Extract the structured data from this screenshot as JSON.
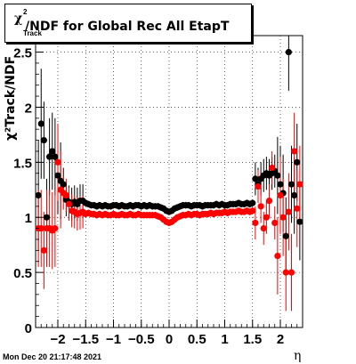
{
  "title": {
    "main": "/NDF for Global Rec All EtapT",
    "chi": "χ",
    "sup": "2",
    "sub": "Track"
  },
  "ylabel": "χ²Track/NDF",
  "xlabel": "η",
  "datestamp": "Mon Dec 20 21:17:48 2021",
  "chart_data": {
    "type": "scatter",
    "title": "χ²Track/NDF for Global Rec All EtapT",
    "xlabel": "η",
    "ylabel": "χ²Track/NDF",
    "xlim": [
      -2.4,
      2.4
    ],
    "ylim": [
      0,
      2.65
    ],
    "xticks": [
      "-2",
      "-1.5",
      "-1",
      "-0.5",
      "0",
      "0.5",
      "1",
      "1.5",
      "2"
    ],
    "yticks": [
      "0",
      "0.5",
      "1",
      "1.5",
      "2",
      "2.5"
    ],
    "grid": true,
    "series": [
      {
        "color": "#000000",
        "points": [
          [
            -2.35,
            1.2
          ],
          [
            -2.3,
            1.85
          ],
          [
            -2.25,
            1.7
          ],
          [
            -2.2,
            1.0
          ],
          [
            -2.15,
            1.55
          ],
          [
            -2.1,
            1.6
          ],
          [
            -2.05,
            1.55
          ],
          [
            -2.0,
            1.38
          ],
          [
            -1.95,
            1.33
          ],
          [
            -1.9,
            1.3
          ],
          [
            -1.85,
            1.16
          ],
          [
            -1.8,
            1.14
          ],
          [
            -1.75,
            1.12
          ],
          [
            -1.7,
            1.14
          ],
          [
            -1.65,
            1.12
          ],
          [
            -1.6,
            1.15
          ],
          [
            -1.55,
            1.15
          ],
          [
            -1.5,
            1.13
          ],
          [
            -1.45,
            1.12
          ],
          [
            -1.4,
            1.11
          ],
          [
            -1.35,
            1.11
          ],
          [
            -1.3,
            1.1
          ],
          [
            -1.25,
            1.11
          ],
          [
            -1.2,
            1.1
          ],
          [
            -1.15,
            1.11
          ],
          [
            -1.1,
            1.1
          ],
          [
            -1.05,
            1.1
          ],
          [
            -1.0,
            1.11
          ],
          [
            -0.95,
            1.11
          ],
          [
            -0.9,
            1.1
          ],
          [
            -0.85,
            1.11
          ],
          [
            -0.8,
            1.1
          ],
          [
            -0.75,
            1.1
          ],
          [
            -0.7,
            1.11
          ],
          [
            -0.65,
            1.1
          ],
          [
            -0.6,
            1.11
          ],
          [
            -0.55,
            1.11
          ],
          [
            -0.5,
            1.1
          ],
          [
            -0.45,
            1.11
          ],
          [
            -0.4,
            1.1
          ],
          [
            -0.35,
            1.11
          ],
          [
            -0.3,
            1.1
          ],
          [
            -0.25,
            1.1
          ],
          [
            -0.2,
            1.1
          ],
          [
            -0.15,
            1.09
          ],
          [
            -0.1,
            1.08
          ],
          [
            -0.05,
            1.06
          ],
          [
            0.0,
            1.05
          ],
          [
            0.05,
            1.06
          ],
          [
            0.1,
            1.08
          ],
          [
            0.15,
            1.09
          ],
          [
            0.2,
            1.1
          ],
          [
            0.25,
            1.11
          ],
          [
            0.3,
            1.11
          ],
          [
            0.35,
            1.11
          ],
          [
            0.4,
            1.1
          ],
          [
            0.45,
            1.11
          ],
          [
            0.5,
            1.11
          ],
          [
            0.55,
            1.11
          ],
          [
            0.6,
            1.1
          ],
          [
            0.65,
            1.11
          ],
          [
            0.7,
            1.11
          ],
          [
            0.75,
            1.11
          ],
          [
            0.8,
            1.11
          ],
          [
            0.85,
            1.12
          ],
          [
            0.9,
            1.11
          ],
          [
            0.95,
            1.12
          ],
          [
            1.0,
            1.11
          ],
          [
            1.05,
            1.11
          ],
          [
            1.1,
            1.12
          ],
          [
            1.15,
            1.12
          ],
          [
            1.2,
            1.12
          ],
          [
            1.25,
            1.13
          ],
          [
            1.3,
            1.12
          ],
          [
            1.35,
            1.12
          ],
          [
            1.4,
            1.13
          ],
          [
            1.45,
            1.12
          ],
          [
            1.5,
            1.13
          ],
          [
            1.55,
            1.35
          ],
          [
            1.6,
            1.3
          ],
          [
            1.65,
            1.35
          ],
          [
            1.7,
            1.38
          ],
          [
            1.75,
            1.4
          ],
          [
            1.8,
            1.38
          ],
          [
            1.85,
            1.4
          ],
          [
            1.9,
            1.42
          ],
          [
            1.95,
            1.38
          ],
          [
            2.0,
            1.3
          ],
          [
            2.05,
            1.22
          ],
          [
            2.1,
            0.83
          ],
          [
            2.15,
            2.5
          ],
          [
            2.2,
            1.3
          ],
          [
            2.25,
            1.2
          ],
          [
            2.3,
            1.5
          ],
          [
            2.35,
            0.96
          ]
        ]
      },
      {
        "color": "#ff0000",
        "points": [
          [
            -2.35,
            0.9
          ],
          [
            -2.3,
            0.9
          ],
          [
            -2.25,
            0.7
          ],
          [
            -2.2,
            0.9
          ],
          [
            -2.15,
            0.9
          ],
          [
            -2.1,
            0.88
          ],
          [
            -2.05,
            0.9
          ],
          [
            -2.0,
            1.5
          ],
          [
            -1.95,
            1.25
          ],
          [
            -1.9,
            1.22
          ],
          [
            -1.85,
            1.2
          ],
          [
            -1.8,
            1.12
          ],
          [
            -1.75,
            1.06
          ],
          [
            -1.7,
            1.05
          ],
          [
            -1.65,
            1.03
          ],
          [
            -1.6,
            1.04
          ],
          [
            -1.55,
            1.05
          ],
          [
            -1.5,
            1.03
          ],
          [
            -1.45,
            1.04
          ],
          [
            -1.4,
            1.03
          ],
          [
            -1.35,
            1.03
          ],
          [
            -1.3,
            1.02
          ],
          [
            -1.25,
            1.03
          ],
          [
            -1.2,
            1.02
          ],
          [
            -1.15,
            1.03
          ],
          [
            -1.1,
            1.02
          ],
          [
            -1.05,
            1.02
          ],
          [
            -1.0,
            1.03
          ],
          [
            -0.95,
            1.02
          ],
          [
            -0.9,
            1.02
          ],
          [
            -0.85,
            1.03
          ],
          [
            -0.8,
            1.02
          ],
          [
            -0.75,
            1.02
          ],
          [
            -0.7,
            1.03
          ],
          [
            -0.65,
            1.02
          ],
          [
            -0.6,
            1.02
          ],
          [
            -0.55,
            1.03
          ],
          [
            -0.5,
            1.02
          ],
          [
            -0.45,
            1.02
          ],
          [
            -0.4,
            1.02
          ],
          [
            -0.35,
            1.02
          ],
          [
            -0.3,
            1.02
          ],
          [
            -0.25,
            1.02
          ],
          [
            -0.2,
            1.01
          ],
          [
            -0.15,
            1.0
          ],
          [
            -0.1,
            0.98
          ],
          [
            -0.05,
            0.96
          ],
          [
            0.0,
            0.95
          ],
          [
            0.05,
            0.96
          ],
          [
            0.1,
            0.98
          ],
          [
            0.15,
            1.0
          ],
          [
            0.2,
            1.01
          ],
          [
            0.25,
            1.02
          ],
          [
            0.3,
            1.02
          ],
          [
            0.35,
            1.03
          ],
          [
            0.4,
            1.02
          ],
          [
            0.45,
            1.03
          ],
          [
            0.5,
            1.03
          ],
          [
            0.55,
            1.02
          ],
          [
            0.6,
            1.03
          ],
          [
            0.65,
            1.03
          ],
          [
            0.7,
            1.03
          ],
          [
            0.75,
            1.04
          ],
          [
            0.8,
            1.03
          ],
          [
            0.85,
            1.04
          ],
          [
            0.9,
            1.04
          ],
          [
            0.95,
            1.04
          ],
          [
            1.0,
            1.05
          ],
          [
            1.05,
            1.04
          ],
          [
            1.1,
            1.05
          ],
          [
            1.15,
            1.05
          ],
          [
            1.2,
            1.05
          ],
          [
            1.25,
            1.06
          ],
          [
            1.3,
            1.05
          ],
          [
            1.35,
            1.05
          ],
          [
            1.4,
            1.06
          ],
          [
            1.45,
            1.05
          ],
          [
            1.5,
            1.06
          ],
          [
            1.55,
            0.95
          ],
          [
            1.6,
            1.28
          ],
          [
            1.65,
            1.1
          ],
          [
            1.7,
            0.9
          ],
          [
            1.75,
            1.0
          ],
          [
            1.8,
            1.15
          ],
          [
            1.85,
            1.45
          ],
          [
            1.9,
            0.95
          ],
          [
            1.95,
            0.65
          ],
          [
            2.0,
            1.2
          ],
          [
            2.05,
            1.0
          ],
          [
            2.1,
            0.5
          ],
          [
            2.15,
            1.05
          ],
          [
            2.2,
            0.5
          ],
          [
            2.25,
            1.6
          ],
          [
            2.3,
            1.08
          ],
          [
            2.35,
            1.3
          ]
        ]
      }
    ]
  }
}
